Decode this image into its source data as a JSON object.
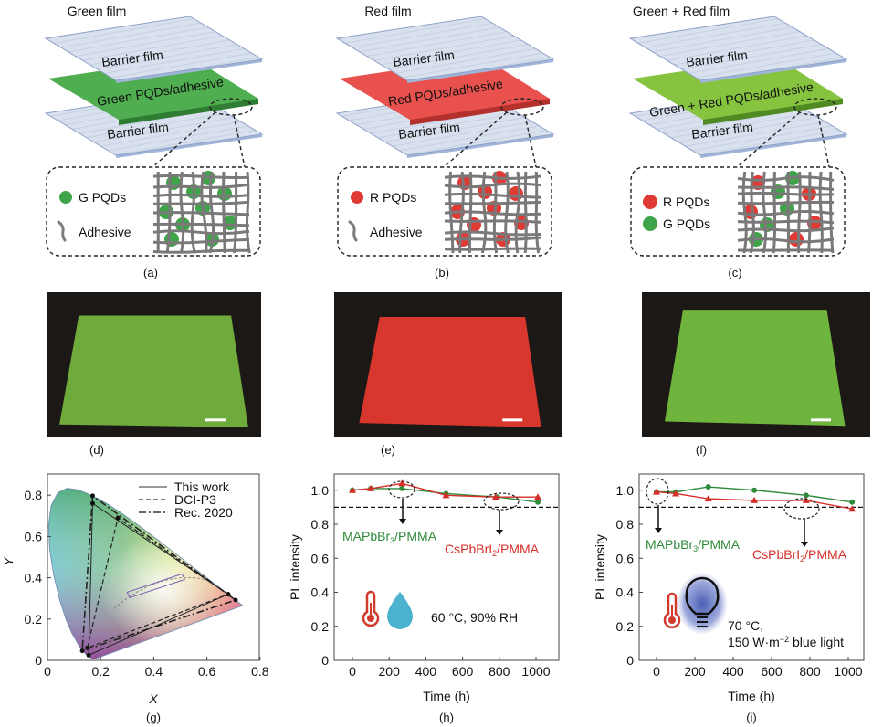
{
  "panels": {
    "a": {
      "title": "Green film",
      "label": "(a)",
      "top_film": "Barrier film",
      "middle_layer": "Green PQDs/adhesive",
      "bottom_film": "Barrier film",
      "legend": [
        "G PQDs",
        "Adhesive"
      ],
      "layer_color": "#4fae4f",
      "layer_side": "#2f7d32",
      "dot_colors": [
        "#3fa34a"
      ]
    },
    "b": {
      "title": "Red film",
      "label": "(b)",
      "top_film": "Barrier film",
      "middle_layer": "Red PQDs/adhesive",
      "bottom_film": "Barrier film",
      "legend": [
        "R PQDs",
        "Adhesive"
      ],
      "layer_color": "#e9514f",
      "layer_side": "#b3302c",
      "dot_colors": [
        "#e03a35"
      ]
    },
    "c": {
      "title": "Green + Red film",
      "label": "(c)",
      "top_film": "Barrier film",
      "middle_layer": "Green + Red PQDs/adhesive",
      "bottom_film": "Barrier film",
      "legend": [
        "R PQDs",
        "G PQDs"
      ],
      "layer_color": "#86c440",
      "layer_side": "#4f8a22",
      "dot_colors": [
        "#e03a35",
        "#3fa34a"
      ]
    }
  },
  "photos": [
    {
      "label": "(d)",
      "film_color": "#6fab3c"
    },
    {
      "label": "(e)",
      "film_color": "#d8372d"
    },
    {
      "label": "(f)",
      "film_color": "#6fb43c"
    }
  ],
  "chart_data": [
    {
      "panel": "(g)",
      "type": "line",
      "title": "",
      "xlabel": "X",
      "ylabel": "Y",
      "xlim": [
        0,
        0.8
      ],
      "ylim": [
        0,
        0.85
      ],
      "xticks": [
        "0",
        "0.2",
        "0.4",
        "0.6",
        "0.8"
      ],
      "yticks": [
        "0",
        "0.2",
        "0.4",
        "0.6",
        "0.8"
      ],
      "legend_position": "top-right",
      "series": [
        {
          "name": "This work",
          "style": "solid",
          "points": [
            [
              0.68,
              0.32
            ],
            [
              0.17,
              0.76
            ],
            [
              0.155,
              0.025
            ],
            [
              0.68,
              0.32
            ]
          ]
        },
        {
          "name": "DCI-P3",
          "style": "dashed",
          "points": [
            [
              0.68,
              0.32
            ],
            [
              0.265,
              0.69
            ],
            [
              0.15,
              0.06
            ],
            [
              0.68,
              0.32
            ]
          ]
        },
        {
          "name": "Rec. 2020",
          "style": "dash-dot",
          "points": [
            [
              0.708,
              0.292
            ],
            [
              0.17,
              0.797
            ],
            [
              0.131,
              0.046
            ],
            [
              0.708,
              0.292
            ]
          ]
        }
      ]
    },
    {
      "panel": "(h)",
      "type": "line",
      "xlabel": "Time (h)",
      "ylabel": "PL intensity",
      "xlim": [
        -90,
        1070
      ],
      "ylim": [
        0,
        1.1
      ],
      "xticks": [
        "0",
        "200",
        "400",
        "600",
        "800",
        "1000"
      ],
      "yticks": [
        "0",
        "0.2",
        "0.4",
        "0.6",
        "0.8",
        "1.0"
      ],
      "threshold": 0.9,
      "condition": "60 °C, 90% RH",
      "series": [
        {
          "name": "MAPbBr3/PMMA",
          "label_parts": [
            "MAPbBr",
            "3",
            "/PMMA"
          ],
          "color": "#2e8b3a",
          "marker": "circle",
          "x": [
            0,
            100,
            270,
            510,
            790,
            1010
          ],
          "y": [
            1.0,
            1.01,
            1.01,
            0.98,
            0.96,
            0.93
          ]
        },
        {
          "name": "CsPbBrI2/PMMA",
          "label_parts": [
            "CsPbBrI",
            "2",
            "/PMMA"
          ],
          "color": "#d62f2a",
          "marker": "triangle",
          "x": [
            0,
            100,
            270,
            510,
            780,
            1010
          ],
          "y": [
            1.0,
            1.01,
            1.04,
            0.97,
            0.96,
            0.96
          ]
        }
      ]
    },
    {
      "panel": "(i)",
      "type": "line",
      "xlabel": "Time (h)",
      "ylabel": "PL intensity",
      "xlim": [
        -90,
        1130
      ],
      "ylim": [
        0,
        1.1
      ],
      "xticks": [
        "0",
        "200",
        "400",
        "600",
        "800",
        "1000"
      ],
      "yticks": [
        "0",
        "0.2",
        "0.4",
        "0.6",
        "0.8",
        "1.0"
      ],
      "threshold": 0.9,
      "condition": [
        "70 °C,",
        "150 W·m",
        "−2",
        " blue light"
      ],
      "series": [
        {
          "name": "MAPbBr3/PMMA",
          "label_parts": [
            "MAPbBr",
            "3",
            "/PMMA"
          ],
          "color": "#2e8b3a",
          "marker": "circle",
          "x": [
            0,
            100,
            270,
            510,
            780,
            1020
          ],
          "y": [
            0.99,
            0.99,
            1.02,
            1.0,
            0.97,
            0.93
          ]
        },
        {
          "name": "CsPbBrI2/PMMA",
          "label_parts": [
            "CsPbBrI",
            "2",
            "/PMMA"
          ],
          "color": "#d62f2a",
          "marker": "triangle",
          "x": [
            0,
            100,
            270,
            510,
            780,
            1020
          ],
          "y": [
            0.99,
            0.98,
            0.95,
            0.94,
            0.94,
            0.89
          ]
        }
      ]
    }
  ]
}
